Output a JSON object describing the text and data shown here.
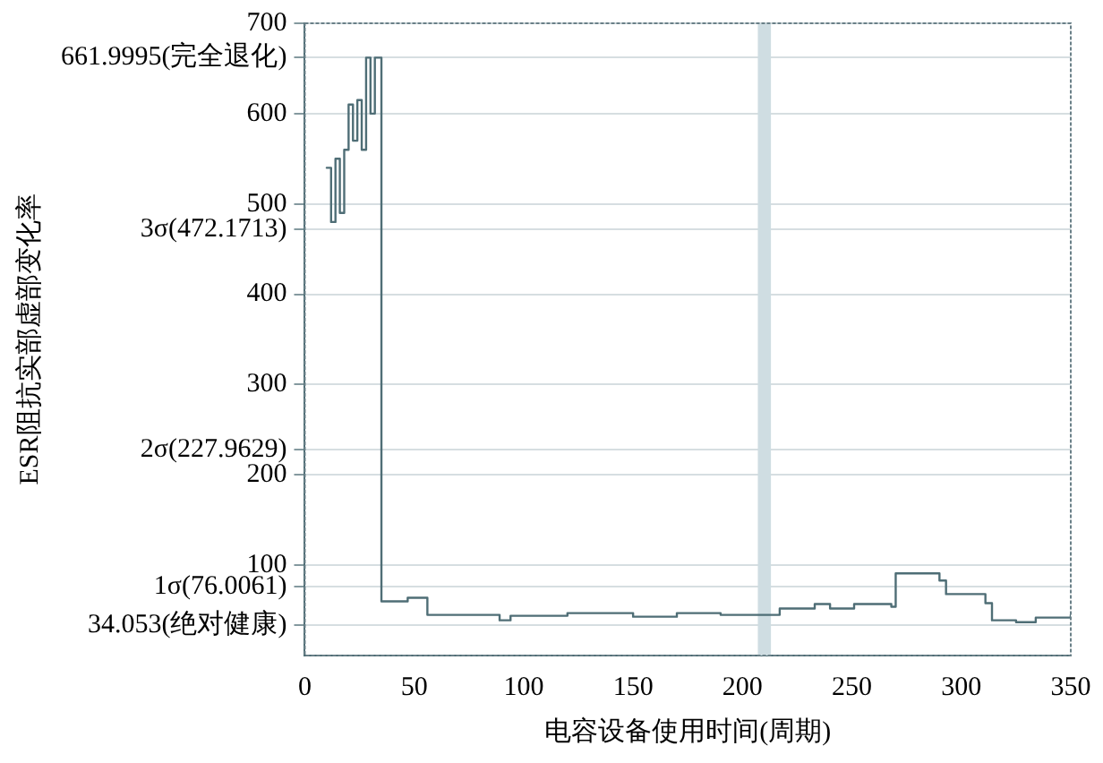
{
  "chart_data": {
    "type": "step",
    "xlabel": "电容设备使用时间(周期)",
    "ylabel": "ESR阻抗实部虚部变化率",
    "xlim": [
      0,
      350
    ],
    "xticks": [
      0,
      50,
      100,
      150,
      200,
      250,
      300,
      350
    ],
    "ylim": [
      0,
      700
    ],
    "yticks": [
      {
        "value": 34.053,
        "label": "34.053(绝对健康)"
      },
      {
        "value": 76.0061,
        "label": "1σ(76.0061)"
      },
      100,
      200,
      {
        "value": 227.9629,
        "label": "2σ(227.9629)"
      },
      300,
      400,
      {
        "value": 472.1713,
        "label": "3σ(472.1713)"
      },
      500,
      600,
      {
        "value": 661.9995,
        "label": "661.9995(完全退化)"
      },
      700
    ],
    "grid": "y",
    "legend": false,
    "marker": "none",
    "line_style": "solid",
    "bands": [
      {
        "axis": "x",
        "from": 207,
        "to": 213,
        "color": "#cfdde2"
      }
    ],
    "series": [
      {
        "color": "#4f6e76",
        "x": [
          10,
          12,
          14,
          16,
          18,
          20,
          22,
          24,
          26,
          28,
          30,
          32,
          34,
          35,
          47,
          56,
          89,
          94,
          120,
          150,
          170,
          190,
          207,
          217,
          233,
          240,
          251,
          268,
          270,
          290,
          293,
          311,
          314,
          325,
          334,
          350
        ],
        "values": [
          540,
          480,
          550,
          490,
          560,
          610,
          570,
          615,
          560,
          662,
          600,
          662,
          662,
          60,
          64,
          45,
          39,
          44,
          47,
          43,
          47,
          45,
          45,
          52,
          57,
          52,
          57,
          54,
          91,
          83,
          68,
          58,
          39,
          37,
          42,
          45
        ]
      }
    ]
  }
}
